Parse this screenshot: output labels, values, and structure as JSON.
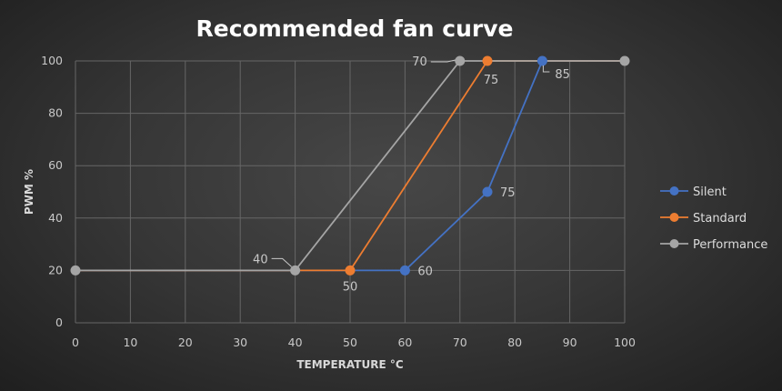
{
  "chart_data": {
    "type": "line",
    "title": "Recommended fan curve",
    "xlabel": "TEMPERATURE °C",
    "ylabel": "PWM %",
    "xlim": [
      0,
      100
    ],
    "ylim": [
      0,
      100
    ],
    "xticks": [
      0,
      10,
      20,
      30,
      40,
      50,
      60,
      70,
      80,
      90,
      100
    ],
    "yticks": [
      0,
      20,
      40,
      60,
      80,
      100
    ],
    "grid": true,
    "legend_position": "right",
    "series": [
      {
        "name": "Silent",
        "color": "#4472c4",
        "points": [
          [
            0,
            20
          ],
          [
            60,
            20
          ],
          [
            75,
            50
          ],
          [
            85,
            100
          ],
          [
            100,
            100
          ]
        ],
        "markers": [
          [
            60,
            20
          ],
          [
            75,
            50
          ],
          [
            85,
            100
          ]
        ],
        "labels": [
          {
            "x": 60,
            "y": 20,
            "text": "60"
          },
          {
            "x": 75,
            "y": 50,
            "text": "75"
          },
          {
            "x": 85,
            "y": 100,
            "text": "85"
          }
        ]
      },
      {
        "name": "Standard",
        "color": "#ed7d31",
        "points": [
          [
            0,
            20
          ],
          [
            50,
            20
          ],
          [
            75,
            100
          ],
          [
            100,
            100
          ]
        ],
        "markers": [
          [
            50,
            20
          ],
          [
            75,
            100
          ]
        ],
        "labels": [
          {
            "x": 50,
            "y": 20,
            "text": "50"
          },
          {
            "x": 75,
            "y": 100,
            "text": "75"
          }
        ]
      },
      {
        "name": "Performance",
        "color": "#a5a5a5",
        "points": [
          [
            0,
            20
          ],
          [
            40,
            20
          ],
          [
            70,
            100
          ],
          [
            100,
            100
          ]
        ],
        "markers": [
          [
            0,
            20
          ],
          [
            40,
            20
          ],
          [
            70,
            100
          ],
          [
            100,
            100
          ]
        ],
        "labels": [
          {
            "x": 40,
            "y": 20,
            "text": "40"
          },
          {
            "x": 70,
            "y": 100,
            "text": "70"
          }
        ]
      }
    ]
  }
}
